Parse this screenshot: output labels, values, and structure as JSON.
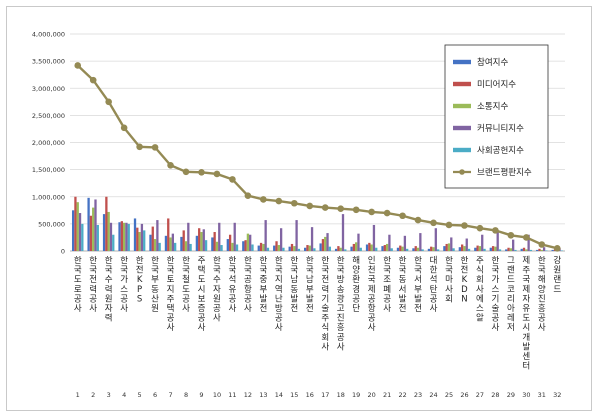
{
  "chart_data": {
    "type": "bar",
    "ylim": [
      0,
      4000000
    ],
    "yticks": [
      "0",
      "500,000",
      "1,000,000",
      "1,500,000",
      "2,000,000",
      "2,500,000",
      "3,000,000",
      "3,500,000",
      "4,000,000"
    ],
    "ytick_values": [
      0,
      500000,
      1000000,
      1500000,
      2000000,
      2500000,
      3000000,
      3500000,
      4000000
    ],
    "grid": true,
    "legend_position": "top-right",
    "categories": [
      "한국도로공사",
      "한국전력공사",
      "한국수력원자력",
      "한국가스공사",
      "한전KPS",
      "한국부동산원",
      "한국토지주택공사",
      "한국철도공사",
      "주택도시보증공사",
      "한국수자원공사",
      "한국석유공사",
      "한국공항공사",
      "한국중부발전",
      "한국지역난방공사",
      "한국남동발전",
      "한국남부발전",
      "한국전력기술주식회사",
      "한국방송광고진흥공사",
      "해양환경공단",
      "인천국제공항공사",
      "한국조폐공사",
      "한국동서발전",
      "한국서부발전",
      "대한석탄공사",
      "한국마사회",
      "한전KDN",
      "주식회사 에스알",
      "한국가스기술공사",
      "그랜드코리아레저",
      "제주국제자유도시개발센터",
      "한국해양진흥공사",
      "강원랜드"
    ],
    "indices": [
      "1",
      "2",
      "3",
      "4",
      "5",
      "6",
      "7",
      "8",
      "9",
      "10",
      "11",
      "12",
      "13",
      "14",
      "15",
      "16",
      "17",
      "18",
      "19",
      "20",
      "21",
      "22",
      "23",
      "24",
      "25",
      "26",
      "27",
      "28",
      "29",
      "30",
      "31",
      "32"
    ],
    "series": [
      {
        "name": "참여지수",
        "color": "#4472c4",
        "values": [
          750000,
          980000,
          680000,
          530000,
          600000,
          300000,
          280000,
          260000,
          280000,
          250000,
          220000,
          180000,
          100000,
          100000,
          80000,
          60000,
          140000,
          40000,
          80000,
          120000,
          90000,
          60000,
          50000,
          40000,
          90000,
          70000,
          60000,
          60000,
          30000,
          40000,
          20000,
          20000
        ]
      },
      {
        "name": "미디어지수",
        "color": "#c0504d",
        "values": [
          1000000,
          650000,
          1000000,
          550000,
          430000,
          450000,
          600000,
          380000,
          420000,
          350000,
          300000,
          200000,
          150000,
          180000,
          130000,
          110000,
          220000,
          90000,
          130000,
          150000,
          110000,
          100000,
          90000,
          80000,
          130000,
          120000,
          100000,
          90000,
          60000,
          60000,
          40000,
          30000
        ]
      },
      {
        "name": "소통지수",
        "color": "#9bbb59",
        "values": [
          900000,
          800000,
          720000,
          520000,
          350000,
          220000,
          250000,
          180000,
          350000,
          170000,
          150000,
          320000,
          130000,
          110000,
          90000,
          100000,
          260000,
          60000,
          160000,
          120000,
          130000,
          80000,
          60000,
          70000,
          140000,
          90000,
          90000,
          80000,
          50000,
          30000,
          20000,
          20000
        ]
      },
      {
        "name": "커뮤니티지수",
        "color": "#8064a2",
        "values": [
          700000,
          950000,
          520000,
          520000,
          500000,
          570000,
          320000,
          520000,
          400000,
          520000,
          520000,
          300000,
          570000,
          420000,
          570000,
          440000,
          330000,
          680000,
          320000,
          480000,
          300000,
          280000,
          330000,
          420000,
          250000,
          230000,
          300000,
          360000,
          210000,
          300000,
          70000,
          50000
        ]
      },
      {
        "name": "사회공헌지수",
        "color": "#4bacc6",
        "values": [
          500000,
          480000,
          300000,
          500000,
          380000,
          150000,
          150000,
          130000,
          200000,
          110000,
          120000,
          120000,
          60000,
          60000,
          40000,
          50000,
          80000,
          30000,
          60000,
          60000,
          50000,
          40000,
          30000,
          30000,
          50000,
          40000,
          40000,
          30000,
          20000,
          20000,
          10000,
          10000
        ]
      },
      {
        "name": "브랜드평판지수",
        "color": "#948a54",
        "type": "line",
        "values": [
          3420000,
          3150000,
          2750000,
          2270000,
          1920000,
          1910000,
          1580000,
          1460000,
          1450000,
          1420000,
          1320000,
          1020000,
          950000,
          920000,
          880000,
          830000,
          800000,
          780000,
          760000,
          720000,
          700000,
          650000,
          570000,
          520000,
          480000,
          470000,
          420000,
          380000,
          290000,
          250000,
          120000,
          50000
        ]
      }
    ]
  }
}
